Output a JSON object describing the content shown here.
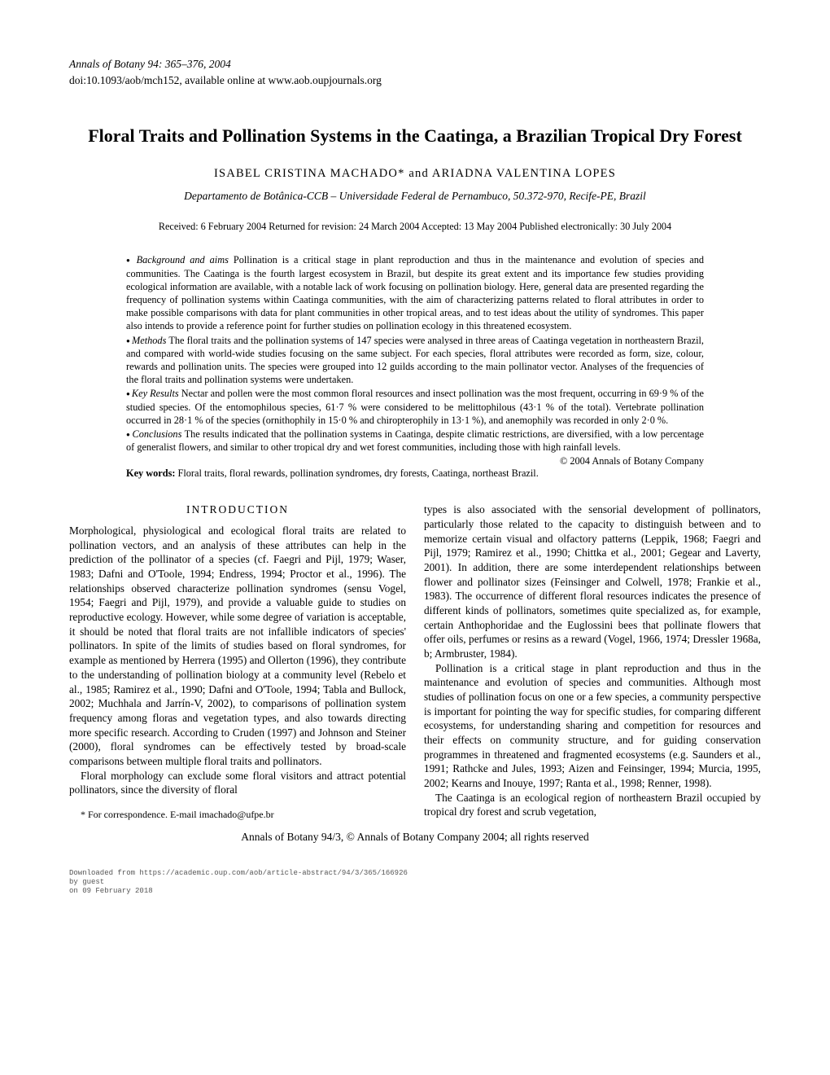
{
  "header": {
    "journal_line": "Annals of Botany 94: 365–376, 2004",
    "doi_line": "doi:10.1093/aob/mch152, available online at www.aob.oupjournals.org"
  },
  "title": "Floral Traits and Pollination Systems in the Caatinga, a Brazilian Tropical Dry Forest",
  "authors": "ISABEL CRISTINA MACHADO* and ARIADNA VALENTINA LOPES",
  "affiliation": "Departamento de Botânica-CCB – Universidade Federal de Pernambuco, 50.372-970, Recife-PE, Brazil",
  "dates": "Received: 6 February 2004   Returned for revision: 24 March 2004   Accepted: 13 May 2004   Published electronically: 30 July 2004",
  "abstract": {
    "background_label": "Background and aims",
    "background": " Pollination is a critical stage in plant reproduction and thus in the maintenance and evolution of species and communities. The Caatinga is the fourth largest ecosystem in Brazil, but despite its great extent and its importance few studies providing ecological information are available, with a notable lack of work focusing on pollination biology. Here, general data are presented regarding the frequency of pollination systems within Caatinga communities, with the aim of characterizing patterns related to floral attributes in order to make possible comparisons with data for plant communities in other tropical areas, and to test ideas about the utility of syndromes. This paper also intends to provide a reference point for further studies on pollination ecology in this threatened ecosystem.",
    "methods_label": "Methods",
    "methods": " The floral traits and the pollination systems of 147 species were analysed in three areas of Caatinga vegetation in northeastern Brazil, and compared with world-wide studies focusing on the same subject. For each species, floral attributes were recorded as form, size, colour, rewards and pollination units. The species were grouped into 12 guilds according to the main pollinator vector. Analyses of the frequencies of the floral traits and pollination systems were undertaken.",
    "results_label": "Key Results",
    "results": " Nectar and pollen were the most common floral resources and insect pollination was the most frequent, occurring in 69·9 % of the studied species. Of the entomophilous species, 61·7 % were considered to be melittophilous (43·1 % of the total). Vertebrate pollination occurred in 28·1 % of the species (ornithophily in 15·0 % and chiropterophily in 13·1 %), and anemophily was recorded in only 2·0 %.",
    "conclusions_label": "Conclusions",
    "conclusions": " The results indicated that the pollination systems in Caatinga, despite climatic restrictions, are diversified, with a low percentage of generalist flowers, and similar to other tropical dry and wet forest communities, including those with high rainfall levels.",
    "copyright": "© 2004 Annals of Botany Company"
  },
  "keywords": {
    "label": "Key words:",
    "text": " Floral traits, floral rewards, pollination syndromes, dry forests, Caatinga, northeast Brazil."
  },
  "intro_heading": "INTRODUCTION",
  "col_left": {
    "p1": "Morphological, physiological and ecological floral traits are related to pollination vectors, and an analysis of these attributes can help in the prediction of the pollinator of a species (cf. Faegri and Pijl, 1979; Waser, 1983; Dafni and O'Toole, 1994; Endress, 1994; Proctor et al., 1996). The relationships observed characterize pollination syndromes (sensu Vogel, 1954; Faegri and Pijl, 1979), and provide a valuable guide to studies on reproductive ecology. However, while some degree of variation is acceptable, it should be noted that floral traits are not infallible indicators of species' pollinators. In spite of the limits of studies based on floral syndromes, for example as mentioned by Herrera (1995) and Ollerton (1996), they contribute to the understanding of pollination biology at a community level (Rebelo et al., 1985; Ramirez et al., 1990; Dafni and O'Toole, 1994; Tabla and Bullock, 2002; Muchhala and Jarrín-V, 2002), to comparisons of pollination system frequency among floras and vegetation types, and also towards directing more specific research. According to Cruden (1997) and Johnson and Steiner (2000), floral syndromes can be effectively tested by broad-scale comparisons between multiple floral traits and pollinators.",
    "p2": "Floral morphology can exclude some floral visitors and attract potential pollinators, since the diversity of floral",
    "footnote": "* For correspondence. E-mail imachado@ufpe.br"
  },
  "col_right": {
    "p1": "types is also associated with the sensorial development of pollinators, particularly those related to the capacity to distinguish between and to memorize certain visual and olfactory patterns (Leppik, 1968; Faegri and Pijl, 1979; Ramirez et al., 1990; Chittka et al., 2001; Gegear and Laverty, 2001). In addition, there are some interdependent relationships between flower and pollinator sizes (Feinsinger and Colwell, 1978; Frankie et al., 1983). The occurrence of different floral resources indicates the presence of different kinds of pollinators, sometimes quite specialized as, for example, certain Anthophoridae and the Euglossini bees that pollinate flowers that offer oils, perfumes or resins as a reward (Vogel, 1966, 1974; Dressler 1968a, b; Armbruster, 1984).",
    "p2": "Pollination is a critical stage in plant reproduction and thus in the maintenance and evolution of species and communities. Although most studies of pollination focus on one or a few species, a community perspective is important for pointing the way for specific studies, for comparing different ecosystems, for understanding sharing and competition for resources and their effects on community structure, and for guiding conservation programmes in threatened and fragmented ecosystems (e.g. Saunders et al., 1991; Rathcke and Jules, 1993; Aizen and Feinsinger, 1994; Murcia, 1995, 2002; Kearns and Inouye, 1997; Ranta et al., 1998; Renner, 1998).",
    "p3": "The Caatinga is an ecological region of northeastern Brazil occupied by tropical dry forest and scrub vegetation,"
  },
  "footer": "Annals of Botany 94/3, © Annals of Botany Company 2004; all rights reserved",
  "download": {
    "l1": "Downloaded from https://academic.oup.com/aob/article-abstract/94/3/365/166926",
    "l2": "by guest",
    "l3": "on 09 February 2018"
  }
}
